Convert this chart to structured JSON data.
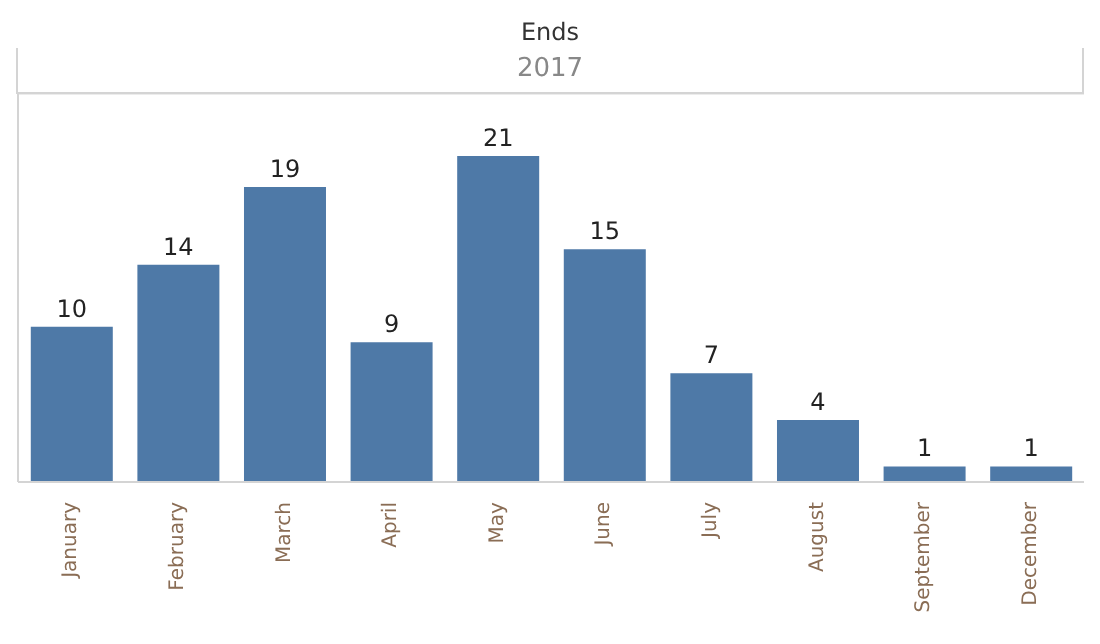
{
  "chart_data": {
    "type": "bar",
    "title": "Ends",
    "subtitle": "2017",
    "categories": [
      "January",
      "February",
      "March",
      "April",
      "May",
      "June",
      "July",
      "August",
      "September",
      "December"
    ],
    "values": [
      10,
      14,
      19,
      9,
      21,
      15,
      7,
      4,
      1,
      1
    ],
    "color": "#4e79a7",
    "ylim": [
      0,
      25
    ],
    "tick_labels": "x",
    "grid": "y",
    "data_labels": true
  }
}
